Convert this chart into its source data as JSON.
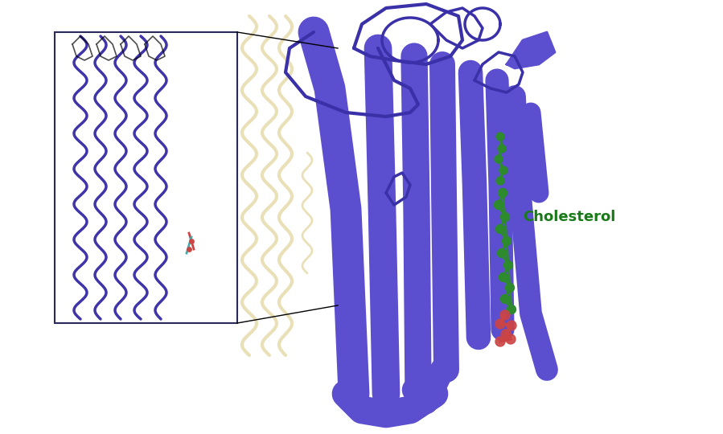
{
  "background_color": "#ffffff",
  "figsize": [
    8.99,
    5.4
  ],
  "dpi": 100,
  "cholesterol_label": "Cholesterol",
  "cholesterol_label_color": "#1a7a1a",
  "cholesterol_label_fontsize": 13,
  "cholesterol_label_fontweight": "bold",
  "protein_color": "#5b4fcf",
  "protein_dark": "#3a30a8",
  "inset_protein_blue": "#2a1fa0",
  "inset_protein_cream": "#e8ddb0",
  "cholesterol_green": "#2d8a2d",
  "cholesterol_red": "#cc4444",
  "helix_linewidth": 18
}
